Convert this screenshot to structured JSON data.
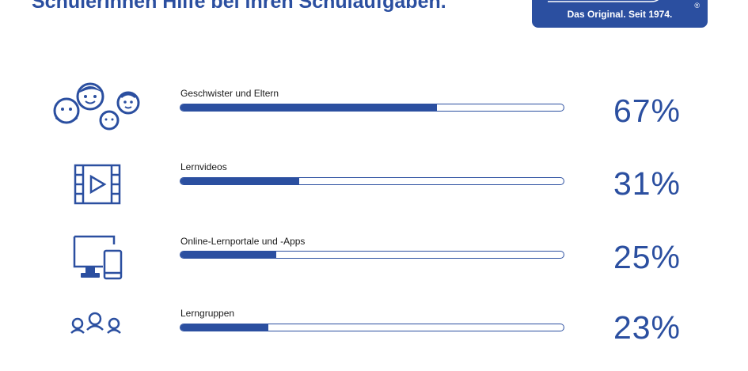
{
  "headline": "SchülerInnen Hilfe bei ihren Schulaufgaben.",
  "logo": {
    "tagline": "Das Original. Seit 1974.",
    "registered": "®",
    "color": "#2b4fa0"
  },
  "chart_data": {
    "type": "bar",
    "orientation": "horizontal",
    "categories": [
      "Geschwister und Eltern",
      "Lernvideos",
      "Online-Lernportale und -Apps",
      "Lerngruppen"
    ],
    "values": [
      67,
      31,
      25,
      23
    ],
    "value_labels": [
      "67%",
      "31%",
      "25%",
      "23%"
    ],
    "unit": "%",
    "xlim": [
      0,
      100
    ],
    "icons": [
      "family-icon",
      "video-film-icon",
      "monitor-phone-icon",
      "group-icon"
    ],
    "bar_color": "#2b4fa0"
  }
}
